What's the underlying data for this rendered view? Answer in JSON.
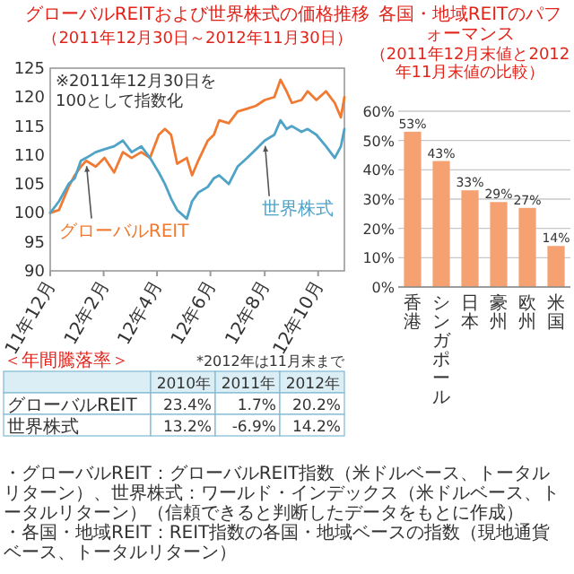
{
  "chart_data": [
    {
      "type": "line",
      "title": "グローバルREITおよび世界株式の価格推移",
      "subtitle": "（2011年12月30日～2012年11月30日）",
      "xlim": [
        "2011-12-30",
        "2012-11-30"
      ],
      "xticks": [
        {
          "value": "2011-12-30",
          "label": "11年12月"
        },
        {
          "value": "2012-02-29",
          "label": "12年2月"
        },
        {
          "value": "2012-04-30",
          "label": "12年4月"
        },
        {
          "value": "2012-06-30",
          "label": "12年6月"
        },
        {
          "value": "2012-08-31",
          "label": "12年8月"
        },
        {
          "value": "2012-10-31",
          "label": "12年10月"
        }
      ],
      "ylim": [
        90,
        125
      ],
      "yticks": [
        90,
        95,
        100,
        105,
        110,
        115,
        120,
        125
      ],
      "grid": false,
      "x": [
        "2011-12-30",
        "2012-01-09",
        "2012-01-20",
        "2012-01-27",
        "2012-02-03",
        "2012-02-09",
        "2012-02-20",
        "2012-03-01",
        "2012-03-12",
        "2012-03-22",
        "2012-04-01",
        "2012-04-12",
        "2012-04-22",
        "2012-05-02",
        "2012-05-09",
        "2012-05-16",
        "2012-05-23",
        "2012-06-03",
        "2012-06-09",
        "2012-06-16",
        "2012-06-27",
        "2012-07-04",
        "2012-07-10",
        "2012-07-21",
        "2012-07-31",
        "2012-08-11",
        "2012-08-21",
        "2012-08-31",
        "2012-09-11",
        "2012-09-18",
        "2012-09-25",
        "2012-10-01",
        "2012-10-12",
        "2012-10-19",
        "2012-10-29",
        "2012-11-09",
        "2012-11-19",
        "2012-11-26",
        "2012-11-30"
      ],
      "series": [
        {
          "name": "グローバルREIT",
          "color": "#f07a32",
          "values": [
            100,
            100.5,
            104.5,
            106.5,
            108,
            109,
            108,
            109.5,
            107,
            110.5,
            109.5,
            110.5,
            109.5,
            113.5,
            114.5,
            113.5,
            108.5,
            109.5,
            106.5,
            109,
            112.5,
            113.5,
            116,
            115.5,
            117.5,
            118,
            118.5,
            119.5,
            120,
            123,
            121,
            119,
            119.5,
            121,
            119.5,
            121,
            119,
            116.5,
            120
          ]
        },
        {
          "name": "世界株式",
          "color": "#4fa3c7",
          "values": [
            100,
            102,
            105,
            106,
            109,
            109.5,
            110.5,
            111,
            111.5,
            112.5,
            110.5,
            111.5,
            109.5,
            107,
            105,
            102.5,
            100.5,
            99,
            102,
            103.5,
            104.5,
            106,
            106.5,
            105,
            108,
            109.5,
            111,
            112.5,
            113.5,
            116,
            114.5,
            115,
            114,
            114.5,
            113.5,
            111.5,
            109.5,
            111.5,
            114.5
          ]
        }
      ],
      "annotations": [
        "※2011年12月30日を100として指数化",
        "＜年間騰落率＞",
        "*2012年は11月末まで",
        "2010年",
        "2011年",
        "2012年",
        "グローバルREIT",
        "23.4%",
        "1.7%",
        "20.2%",
        "世界株式",
        "13.2%",
        "-6.9%",
        "14.2%",
        "・グローバルREIT：グローバルREIT指数（米ドルベース、トータルリターン）、世界株式：ワールド・インデックス（米ドルベース、トータルリターン）（信頼できると判断したデータをもとに作成）"
      ]
    },
    {
      "type": "bar",
      "title": "各国・地域REITのパフォーマンス",
      "subtitle": "（2011年12月末値と2012年11月末値の比較）",
      "categories": [
        "香港",
        "シンガポール",
        "日本",
        "豪州",
        "欧州",
        "米国"
      ],
      "values": [
        53,
        43,
        33,
        29,
        27,
        14
      ],
      "color": "#f5a172",
      "value_labels": [
        "53%",
        "43%",
        "33%",
        "29%",
        "27%",
        "14%"
      ],
      "ylim": [
        0,
        60
      ],
      "yticks": [
        {
          "value": 0,
          "label": "0%"
        },
        {
          "value": 10,
          "label": "10%"
        },
        {
          "value": 20,
          "label": "20%"
        },
        {
          "value": 30,
          "label": "30%"
        },
        {
          "value": 40,
          "label": "40%"
        },
        {
          "value": 50,
          "label": "50%"
        },
        {
          "value": 60,
          "label": "60%"
        }
      ],
      "grid": "y",
      "annotations": [
        "・各国・地域REIT：REIT指数の各国・地域ベースの指数（現地通貨ベース、トータルリターン）"
      ]
    }
  ]
}
